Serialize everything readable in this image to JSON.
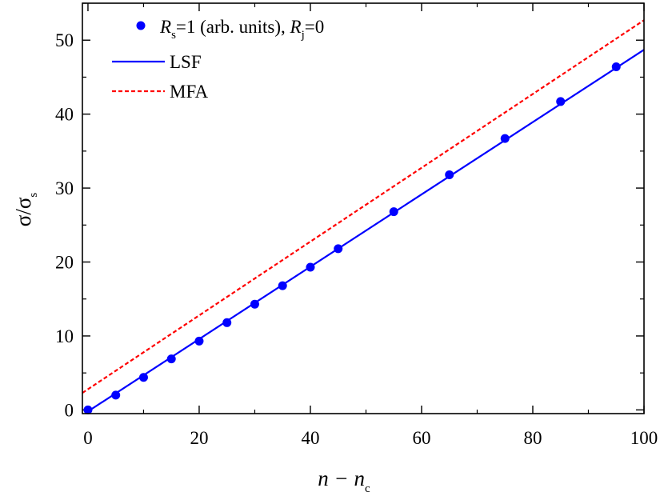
{
  "chart_data": {
    "type": "scatter",
    "xlim": [
      -1,
      100
    ],
    "ylim": [
      -0.5,
      55
    ],
    "x_ticks": [
      0,
      20,
      40,
      60,
      80,
      100
    ],
    "y_ticks": [
      0,
      10,
      20,
      30,
      40,
      50
    ],
    "x_tick_labels": [
      "0",
      "20",
      "40",
      "60",
      "80",
      "100"
    ],
    "y_tick_labels": [
      "0",
      "10",
      "20",
      "30",
      "40",
      "50"
    ],
    "x_minor_step": 10,
    "y_minor_step": 5,
    "xlabel": {
      "main": "n − n",
      "sub": "c"
    },
    "ylabel": {
      "main": "σ/σ",
      "sub": "s"
    },
    "grid": false,
    "legend_position": "top-left",
    "series": [
      {
        "name": "R_s=1 (arb. units), R_j=0",
        "legend": {
          "r1": "R",
          "s1": "s",
          "mid": "=1 (arb. units),  ",
          "r2": "R",
          "s2": "j",
          "end": "=0"
        },
        "style": "markers",
        "color": "#0000ff",
        "x": [
          0,
          5,
          10,
          15,
          20,
          25,
          30,
          35,
          40,
          45,
          55,
          65,
          75,
          85,
          95
        ],
        "y": [
          0.0,
          2.0,
          4.4,
          6.9,
          9.3,
          11.8,
          14.3,
          16.8,
          19.3,
          21.8,
          26.8,
          31.8,
          36.7,
          41.7,
          46.4
        ]
      },
      {
        "name": "LSF",
        "style": "solid",
        "color": "#0000ff",
        "x": [
          0,
          100
        ],
        "y": [
          -0.2,
          48.7
        ]
      },
      {
        "name": "MFA",
        "style": "dashed",
        "color": "#ff0000",
        "x": [
          -1,
          100
        ],
        "y": [
          2.3,
          52.7
        ]
      }
    ]
  }
}
